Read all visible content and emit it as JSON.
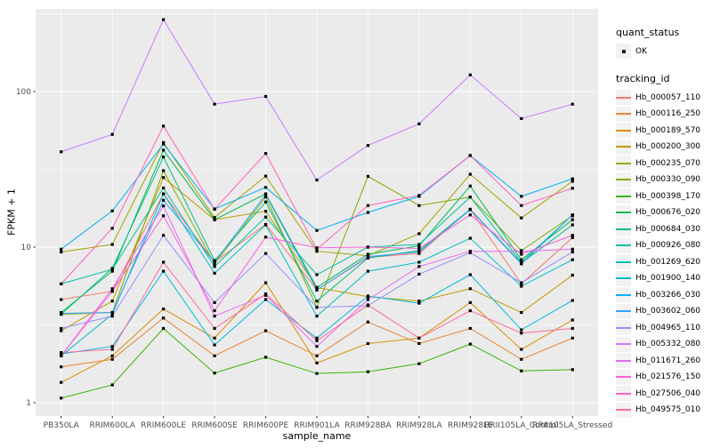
{
  "chart_data": {
    "type": "line",
    "title": "",
    "xlabel": "sample_name",
    "ylabel": "FPKM + 1",
    "y_scale": "log10",
    "y_ticks": [
      1,
      10,
      100
    ],
    "ylim": [
      0.82,
      340
    ],
    "grid": "on",
    "panel_bg": "#EBEBEB",
    "grid_color": "#FFFFFF",
    "axis_text_color": "#4D4D4D",
    "point_color": "#000000",
    "legend_key_bg": "#F2F2F2",
    "legend_position": "right",
    "categories": [
      "PB350LA",
      "RRIM600LA",
      "RRIM600LE",
      "RRIM600SE",
      "RRIM600PE",
      "RRIM901LA",
      "RRIM928BA",
      "RRIM928LA",
      "RRIM928LE",
      "RRII105LA_Control",
      "RRII105LA_Stressed"
    ],
    "legend": {
      "quant_status": {
        "title": "quant_status",
        "entries": [
          {
            "label": "OK"
          }
        ]
      },
      "tracking_id": {
        "title": "tracking_id"
      }
    },
    "series": [
      {
        "name": "Hb_000057_110",
        "color": "#F8766D",
        "values": [
          4.6,
          5.2,
          22,
          8.0,
          14,
          5.3,
          8.6,
          9.1,
          17.5,
          5.8,
          11.5
        ]
      },
      {
        "name": "Hb_000116_250",
        "color": "#EA8331",
        "values": [
          1.7,
          1.9,
          3.5,
          2.0,
          2.9,
          2.0,
          3.3,
          2.4,
          3.0,
          1.9,
          2.6
        ]
      },
      {
        "name": "Hb_000189_570",
        "color": "#D89000",
        "values": [
          1.35,
          2.0,
          4.0,
          2.6,
          5.9,
          1.8,
          2.4,
          2.6,
          4.4,
          2.2,
          3.4
        ]
      },
      {
        "name": "Hb_000200_300",
        "color": "#C09B00",
        "values": [
          2.9,
          4.5,
          28,
          15,
          17,
          5.5,
          4.8,
          4.5,
          5.4,
          3.8,
          6.6
        ]
      },
      {
        "name": "Hb_000235_070",
        "color": "#A3A500",
        "values": [
          9.3,
          10.4,
          47,
          15.5,
          28.6,
          9.4,
          8.8,
          12.2,
          29.4,
          15.4,
          26.5
        ]
      },
      {
        "name": "Hb_000330_090",
        "color": "#7CAE00",
        "values": [
          3.7,
          3.8,
          31,
          7.8,
          21,
          4.1,
          28.5,
          18.5,
          21,
          9.5,
          15.9
        ]
      },
      {
        "name": "Hb_000398_170",
        "color": "#39B600",
        "values": [
          1.07,
          1.3,
          3.0,
          1.55,
          1.96,
          1.54,
          1.58,
          1.78,
          2.38,
          1.6,
          1.63
        ]
      },
      {
        "name": "Hb_000676_020",
        "color": "#00BB4E",
        "values": [
          3.8,
          7.0,
          42,
          15,
          22,
          5.5,
          9.0,
          10.2,
          24.7,
          8.3,
          15.0
        ]
      },
      {
        "name": "Hb_000684_030",
        "color": "#00BF7D",
        "values": [
          3.7,
          7.3,
          38,
          8.2,
          19.5,
          4.5,
          8.5,
          9.5,
          17.5,
          7.9,
          13.9
        ]
      },
      {
        "name": "Hb_000926_080",
        "color": "#00C1A3",
        "values": [
          5.8,
          7.2,
          24,
          7.5,
          15.6,
          6.65,
          10,
          10.4,
          21,
          8.0,
          16.1
        ]
      },
      {
        "name": "Hb_001269_620",
        "color": "#00BFC4",
        "values": [
          2.0,
          3.7,
          22,
          6.8,
          13.9,
          3.6,
          7.0,
          8.0,
          11.4,
          5.6,
          8.3
        ]
      },
      {
        "name": "Hb_001900_140",
        "color": "#00BAE0",
        "values": [
          2.06,
          2.3,
          7.0,
          2.35,
          4.6,
          2.6,
          4.85,
          4.36,
          6.65,
          2.94,
          4.54
        ]
      },
      {
        "name": "Hb_003266_030",
        "color": "#00B0F6",
        "values": [
          9.7,
          17.1,
          46,
          17.6,
          24.2,
          12.8,
          16.7,
          21.2,
          38.8,
          21.2,
          27.5
        ]
      },
      {
        "name": "Hb_003602_060",
        "color": "#35A2FF",
        "values": [
          3.75,
          3.8,
          20,
          8.0,
          21.8,
          5.3,
          8.7,
          9.3,
          17.4,
          7.8,
          16.1
        ]
      },
      {
        "name": "Hb_004965_110",
        "color": "#9590FF",
        "values": [
          3.0,
          3.6,
          11.9,
          4.4,
          9.1,
          4.1,
          4.2,
          6.7,
          9.2,
          5.9,
          9.3
        ]
      },
      {
        "name": "Hb_005332_080",
        "color": "#C77CFF",
        "values": [
          41,
          53,
          290,
          83,
          93,
          27,
          45,
          62,
          128,
          67,
          83
        ]
      },
      {
        "name": "Hb_011671_260",
        "color": "#E76BF3",
        "values": [
          2.0,
          5.4,
          18.4,
          3.6,
          4.9,
          2.3,
          4.6,
          7.5,
          9.4,
          9.4,
          9.7
        ]
      },
      {
        "name": "Hb_021576_150",
        "color": "#FA62DB",
        "values": [
          2.0,
          5.2,
          15.9,
          3.9,
          11.6,
          9.9,
          10.0,
          9.8,
          16.1,
          9.0,
          11.9
        ]
      },
      {
        "name": "Hb_027506_040",
        "color": "#FF62BC",
        "values": [
          5.8,
          13.2,
          60,
          17.5,
          40,
          9.7,
          18.5,
          21.5,
          38.8,
          18.5,
          23.9
        ]
      },
      {
        "name": "Hb_049575_010",
        "color": "#FF6A98",
        "values": [
          2.1,
          2.2,
          8.0,
          3.0,
          5.0,
          2.5,
          4.25,
          2.6,
          3.9,
          2.8,
          3.0
        ]
      }
    ]
  }
}
